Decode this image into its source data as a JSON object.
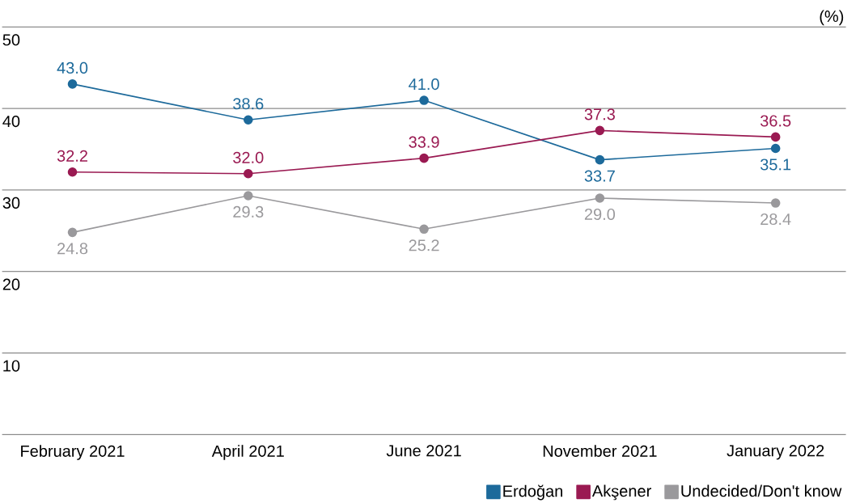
{
  "chart_data": {
    "type": "line",
    "ylabel": "(%)",
    "categories": [
      "February 2021",
      "April 2021",
      "June 2021",
      "November 2021",
      "January 2022"
    ],
    "series": [
      {
        "name": "Erdoğan",
        "color": "#1d6a9b",
        "values": [
          43.0,
          38.6,
          41.0,
          33.7,
          35.1
        ],
        "value_labels": [
          "43.0",
          "38.6",
          "41.0",
          "33.7",
          "35.1"
        ]
      },
      {
        "name": "Akşener",
        "color": "#9a1a52",
        "values": [
          32.2,
          32.0,
          33.9,
          37.3,
          36.5
        ],
        "value_labels": [
          "32.2",
          "32.0",
          "33.9",
          "37.3",
          "36.5"
        ]
      },
      {
        "name": "Undecided/Don't know",
        "color": "#9a999c",
        "values": [
          24.8,
          29.3,
          25.2,
          29.0,
          28.4
        ],
        "value_labels": [
          "24.8",
          "29.3",
          "25.2",
          "29.0",
          "28.4"
        ]
      }
    ],
    "ylim": [
      0,
      50
    ],
    "yticks": [
      {
        "value": 0,
        "label": null
      },
      10,
      20,
      30,
      40,
      50
    ],
    "grid": "y",
    "legend": "bottom right",
    "marker": "circle",
    "line_style": "solid"
  }
}
